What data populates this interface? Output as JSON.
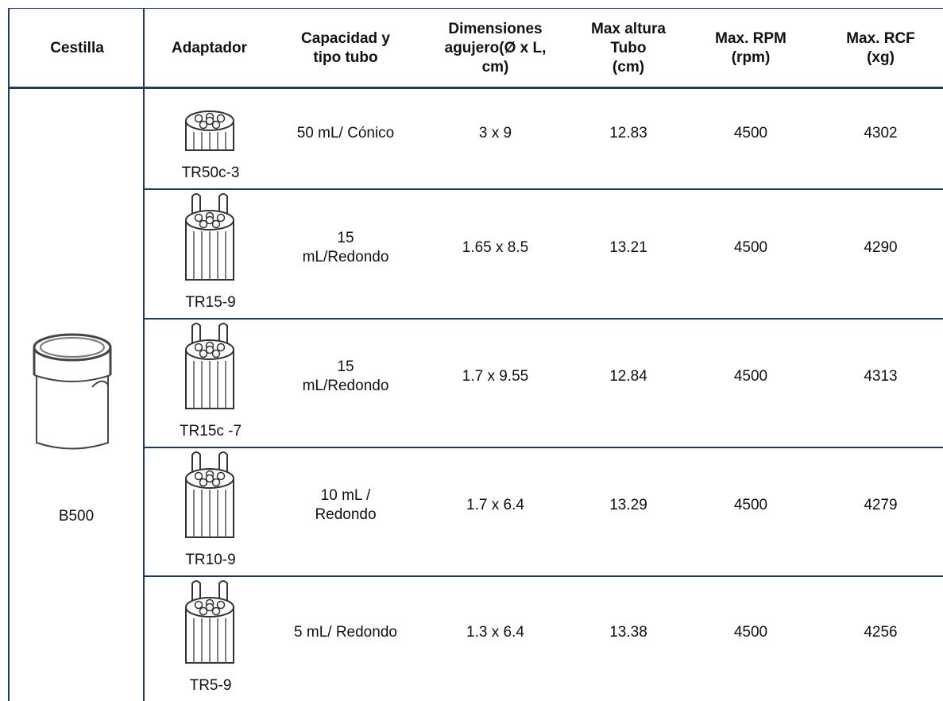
{
  "table": {
    "headers": [
      "Cestilla",
      "Adaptador",
      "Capacidad y\ntipo tubo",
      "Dimensiones\nagujero(Ø x L,\ncm)",
      "Max altura\nTubo\n(cm)",
      "Max. RPM\n(rpm)",
      "Max. RCF\n(xg)"
    ],
    "basket": "B500",
    "rows": [
      {
        "adapter": "TR50c-3",
        "cells": [
          "50 mL/ Cónico",
          "3 x 9",
          "12.83",
          "4500",
          "4302"
        ]
      },
      {
        "adapter": "TR15-9",
        "cells": [
          "15\nmL/Redondo",
          "1.65 x 8.5",
          "13.21",
          "4500",
          "4290"
        ]
      },
      {
        "adapter": "TR15c -7",
        "cells": [
          "15\nmL/Redondo",
          "1.7 x 9.55",
          "12.84",
          "4500",
          "4313"
        ]
      },
      {
        "adapter": "TR10-9",
        "cells": [
          "10 mL /\nRedondo",
          "1.7 x 6.4",
          "13.29",
          "4500",
          "4279"
        ]
      },
      {
        "adapter": "TR5-9",
        "cells": [
          "5 mL/ Redondo",
          "1.3 x 6.4",
          "13.38",
          "4500",
          "4256"
        ]
      }
    ]
  }
}
